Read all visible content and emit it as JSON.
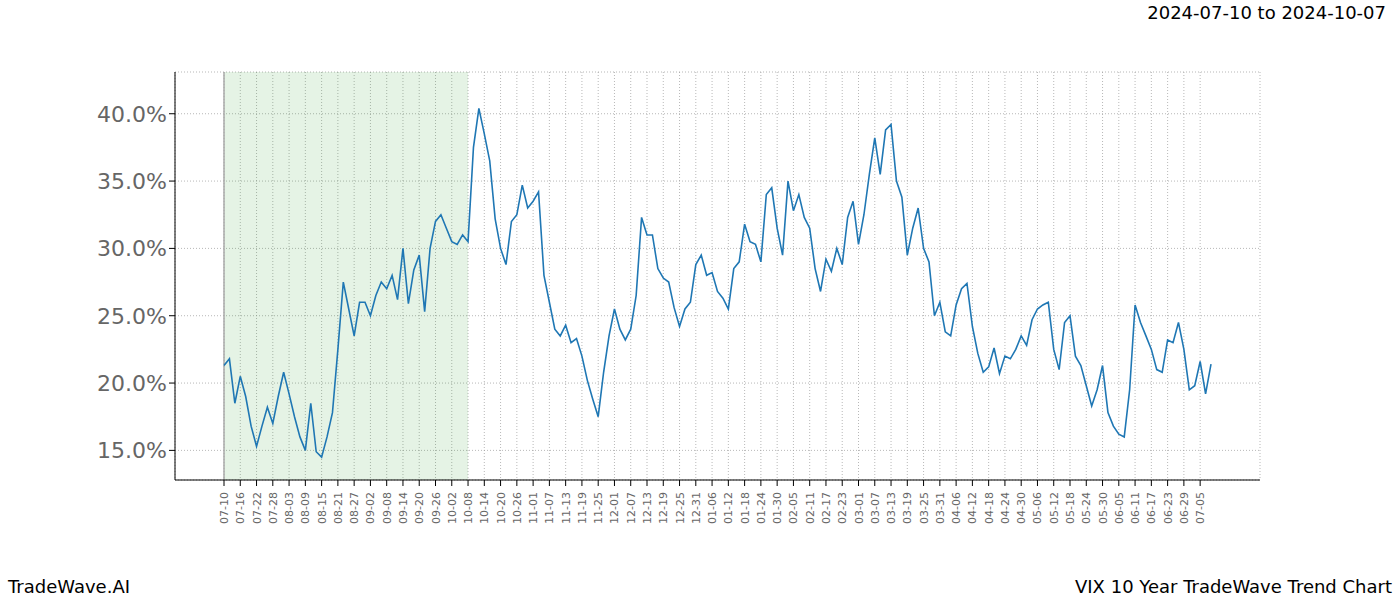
{
  "chart_data": {
    "type": "line",
    "title": "VIX 10 Year TradeWave Trend Chart",
    "subtitle": "2024-07-10 to 2024-10-07",
    "source": "TradeWave.AI",
    "highlight": [
      "07-10",
      "10-08"
    ],
    "categories": [
      "07-10",
      null,
      null,
      "07-16",
      null,
      null,
      "07-22",
      null,
      null,
      "07-28",
      null,
      null,
      "08-03",
      null,
      null,
      "08-09",
      null,
      null,
      "08-15",
      null,
      null,
      "08-21",
      null,
      null,
      "08-27",
      null,
      null,
      "09-02",
      null,
      null,
      "09-08",
      null,
      null,
      "09-14",
      null,
      null,
      "09-20",
      null,
      null,
      "09-26",
      null,
      null,
      "10-02",
      null,
      null,
      "10-08",
      null,
      null,
      "10-14",
      null,
      null,
      "10-20",
      null,
      null,
      "10-26",
      null,
      null,
      "11-01",
      null,
      null,
      "11-07",
      null,
      null,
      "11-13",
      null,
      null,
      "11-19",
      null,
      null,
      "11-25",
      null,
      null,
      "12-01",
      null,
      null,
      "12-07",
      null,
      null,
      "12-13",
      null,
      null,
      "12-19",
      null,
      null,
      "12-25",
      null,
      null,
      "12-31",
      null,
      null,
      "01-06",
      null,
      null,
      "01-12",
      null,
      null,
      "01-18",
      null,
      null,
      "01-24",
      null,
      null,
      "01-30",
      null,
      null,
      "02-05",
      null,
      null,
      "02-11",
      null,
      null,
      "02-17",
      null,
      null,
      "02-23",
      null,
      null,
      "03-01",
      null,
      null,
      "03-07",
      null,
      null,
      "03-13",
      null,
      null,
      "03-19",
      null,
      null,
      "03-25",
      null,
      null,
      "03-31",
      null,
      null,
      "04-06",
      null,
      null,
      "04-12",
      null,
      null,
      "04-18",
      null,
      null,
      "04-24",
      null,
      null,
      "04-30",
      null,
      null,
      "05-06",
      null,
      null,
      "05-12",
      null,
      null,
      "05-18",
      null,
      null,
      "05-24",
      null,
      null,
      "05-30",
      null,
      null,
      "06-05",
      null,
      null,
      "06-11",
      null,
      null,
      "06-17",
      null,
      null,
      "06-23",
      null,
      null,
      "06-29",
      null,
      null,
      "07-05",
      null,
      null
    ],
    "values": [
      21.3,
      21.8,
      18.5,
      20.5,
      19.0,
      16.8,
      15.3,
      16.8,
      18.2,
      17.0,
      19.0,
      20.8,
      19.2,
      17.5,
      16.0,
      15.0,
      18.5,
      14.9,
      14.5,
      16.0,
      17.8,
      22.5,
      27.5,
      25.5,
      23.5,
      26.0,
      26.0,
      25.0,
      26.5,
      27.5,
      27.0,
      28.0,
      26.2,
      30.0,
      25.9,
      28.4,
      29.5,
      25.3,
      30.0,
      32.0,
      32.5,
      31.5,
      30.5,
      30.3,
      31.0,
      30.5,
      37.5,
      40.4,
      38.5,
      36.5,
      32.2,
      30.0,
      28.8,
      32.0,
      32.5,
      34.7,
      33.0,
      33.5,
      34.2,
      28.0,
      26.0,
      24.0,
      23.5,
      24.3,
      23.0,
      23.3,
      22.0,
      20.2,
      18.8,
      17.5,
      20.8,
      23.5,
      25.5,
      24.0,
      23.2,
      24.0,
      26.5,
      32.3,
      31.0,
      31.0,
      28.5,
      27.8,
      27.5,
      25.6,
      24.2,
      25.5,
      26.0,
      28.8,
      29.5,
      28.0,
      28.2,
      26.8,
      26.3,
      25.5,
      28.5,
      29.0,
      31.8,
      30.5,
      30.3,
      29.0,
      34.0,
      34.5,
      31.5,
      29.5,
      35.0,
      32.8,
      34.0,
      32.3,
      31.5,
      28.5,
      26.8,
      29.2,
      28.3,
      30.0,
      28.8,
      32.3,
      33.5,
      30.3,
      32.5,
      35.5,
      38.2,
      35.5,
      38.8,
      39.2,
      35.0,
      33.8,
      29.5,
      31.5,
      33.0,
      30.0,
      29.0,
      25.0,
      26.0,
      23.8,
      23.5,
      25.8,
      27.0,
      27.4,
      24.2,
      22.2,
      20.8,
      21.2,
      22.6,
      20.7,
      22.0,
      21.8,
      22.5,
      23.5,
      22.8,
      24.7,
      25.5,
      25.8,
      26.0,
      22.5,
      21.0,
      24.5,
      25.0,
      22.0,
      21.3,
      19.8,
      18.3,
      19.5,
      21.3,
      17.8,
      16.8,
      16.2,
      16.0,
      19.5,
      25.8,
      24.5,
      23.5,
      22.5,
      21.0,
      20.8,
      23.2,
      23.0,
      24.5,
      22.5,
      19.5,
      19.8,
      21.6,
      19.2,
      21.4
    ],
    "color": "#1f77b4",
    "ylim": [
      12.8,
      43.1
    ],
    "yticks": [
      {
        "value": 15,
        "label": "15.0%"
      },
      {
        "value": 20,
        "label": "20.0%"
      },
      {
        "value": 25,
        "label": "25.0%"
      },
      {
        "value": 30,
        "label": "30.0%"
      },
      {
        "value": 35,
        "label": "35.0%"
      },
      {
        "value": 40,
        "label": "40.0%"
      }
    ],
    "grid": true
  }
}
